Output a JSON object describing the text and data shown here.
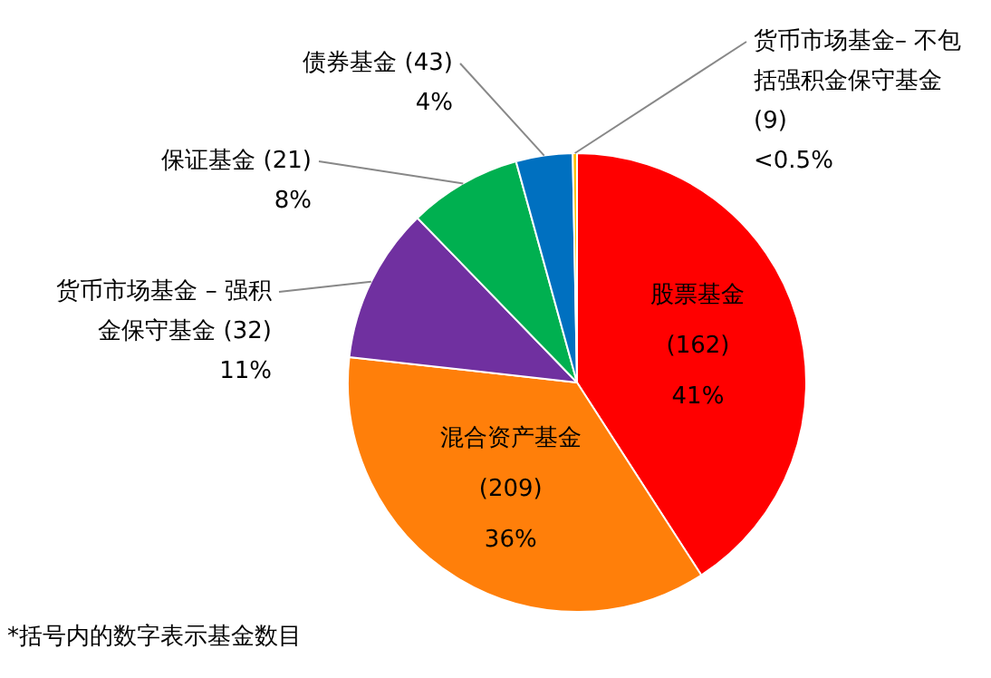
{
  "chart_data": {
    "type": "pie",
    "categories": [
      "股票基金 (162)",
      "混合资产基金 (209)",
      "货币市场基金 – 强积金保守基金 (32)",
      "保证基金 (21)",
      "债券基金 (43)",
      "货币市场基金– 不包括强积金保守基金 (9)"
    ],
    "values": [
      41,
      36,
      11,
      8,
      4,
      0.3
    ],
    "value_labels": [
      "41%",
      "36%",
      "11%",
      "8%",
      "4%",
      "<0.5%"
    ],
    "colors": [
      "#ff0000",
      "#ff7f0a",
      "#7030a0",
      "#00b050",
      "#0070c0",
      "#ffc000"
    ],
    "annotations": [
      "*括号内的数字表示基金数目"
    ],
    "legend": false
  }
}
